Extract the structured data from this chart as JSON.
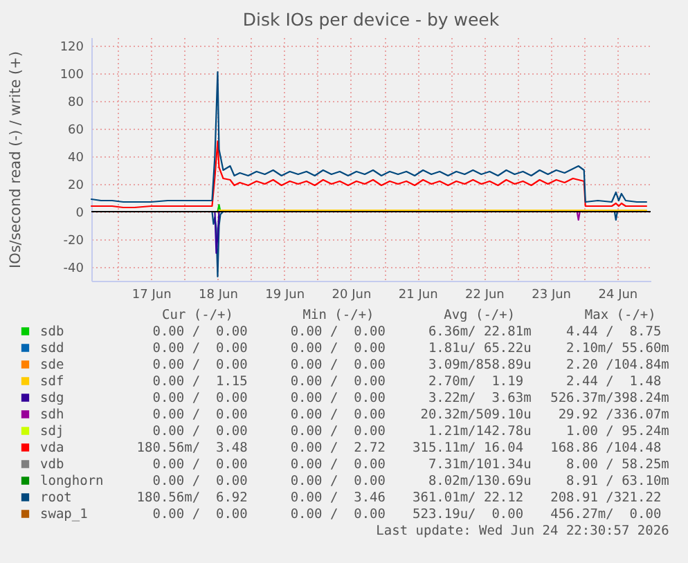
{
  "chart_data": {
    "type": "line",
    "title": "Disk IOs per device - by week",
    "ylabel": "IOs/second read (-) / write (+)",
    "xlim": [
      "2026-06-16T14:30",
      "2026-06-25T00:00"
    ],
    "ylim": [
      -50,
      126
    ],
    "xticks": [
      {
        "value": "2026-06-17T00:00",
        "label": null
      },
      {
        "value": "2026-06-17T12:00",
        "label": "17 Jun"
      },
      {
        "value": "2026-06-18T00:00",
        "label": null
      },
      {
        "value": "2026-06-18T12:00",
        "label": "18 Jun"
      },
      {
        "value": "2026-06-19T00:00",
        "label": null
      },
      {
        "value": "2026-06-19T12:00",
        "label": "19 Jun"
      },
      {
        "value": "2026-06-20T00:00",
        "label": null
      },
      {
        "value": "2026-06-20T12:00",
        "label": "20 Jun"
      },
      {
        "value": "2026-06-21T00:00",
        "label": null
      },
      {
        "value": "2026-06-21T12:00",
        "label": "21 Jun"
      },
      {
        "value": "2026-06-22T00:00",
        "label": null
      },
      {
        "value": "2026-06-22T12:00",
        "label": "22 Jun"
      },
      {
        "value": "2026-06-23T00:00",
        "label": null
      },
      {
        "value": "2026-06-23T12:00",
        "label": "23 Jun"
      },
      {
        "value": "2026-06-24T00:00",
        "label": null
      },
      {
        "value": "2026-06-24T12:00",
        "label": "24 Jun"
      }
    ],
    "yticks": [
      -40,
      -20,
      0,
      20,
      40,
      60,
      80,
      100,
      120
    ],
    "grid": true,
    "legend": "bottom",
    "ref_lines": [
      {
        "axis": "y",
        "value": 0,
        "color": "#000000"
      }
    ],
    "x": [
      "2026-06-16T14:30",
      "2026-06-16T18:00",
      "2026-06-16T22:00",
      "2026-06-17T02:00",
      "2026-06-17T06:00",
      "2026-06-17T12:00",
      "2026-06-17T18:00",
      "2026-06-18T00:00",
      "2026-06-18T06:00",
      "2026-06-18T10:00",
      "2026-06-18T11:00",
      "2026-06-18T12:00",
      "2026-06-18T12:30",
      "2026-06-18T14:00",
      "2026-06-18T16:30",
      "2026-06-18T18:00",
      "2026-06-18T20:00",
      "2026-06-18T23:00",
      "2026-06-19T02:00",
      "2026-06-19T05:00",
      "2026-06-19T08:00",
      "2026-06-19T11:00",
      "2026-06-19T14:00",
      "2026-06-19T17:00",
      "2026-06-19T20:00",
      "2026-06-19T23:00",
      "2026-06-20T02:00",
      "2026-06-20T05:00",
      "2026-06-20T08:00",
      "2026-06-20T11:00",
      "2026-06-20T14:00",
      "2026-06-20T17:00",
      "2026-06-20T20:00",
      "2026-06-20T23:00",
      "2026-06-21T02:00",
      "2026-06-21T05:00",
      "2026-06-21T08:00",
      "2026-06-21T11:00",
      "2026-06-21T14:00",
      "2026-06-21T17:00",
      "2026-06-21T20:00",
      "2026-06-21T23:00",
      "2026-06-22T02:00",
      "2026-06-22T05:00",
      "2026-06-22T08:00",
      "2026-06-22T11:00",
      "2026-06-22T14:00",
      "2026-06-22T17:00",
      "2026-06-22T20:00",
      "2026-06-22T23:00",
      "2026-06-23T02:00",
      "2026-06-23T05:00",
      "2026-06-23T08:00",
      "2026-06-23T11:00",
      "2026-06-23T14:00",
      "2026-06-23T17:00",
      "2026-06-23T20:00",
      "2026-06-23T22:00",
      "2026-06-24T00:00",
      "2026-06-24T00:30",
      "2026-06-24T05:00",
      "2026-06-24T10:00",
      "2026-06-24T11:30",
      "2026-06-24T12:30",
      "2026-06-24T13:30",
      "2026-06-24T15:00",
      "2026-06-24T19:00",
      "2026-06-24T22:30"
    ],
    "series": [
      {
        "name": "sdb",
        "color": "#00cc00",
        "x": [
          "2026-06-18T12:00",
          "2026-06-18T12:30",
          "2026-06-18T13:00"
        ],
        "values": [
          0,
          5,
          0
        ]
      },
      {
        "name": "sdd",
        "color": "#0066b3",
        "values": [
          null,
          null,
          null,
          null,
          null,
          null,
          null,
          null,
          null,
          null,
          null,
          null,
          null,
          null,
          null,
          null,
          null,
          null,
          null,
          null,
          null,
          null,
          null,
          null,
          null,
          null,
          null,
          null,
          null,
          null,
          null,
          null,
          null,
          null,
          null,
          null,
          null,
          null,
          null,
          null,
          null,
          null,
          null,
          null,
          null,
          null,
          null,
          null,
          null,
          null,
          null,
          null,
          null,
          null,
          null,
          null,
          null,
          null,
          null,
          null,
          null,
          null,
          null,
          null,
          null,
          null,
          null,
          null
        ]
      },
      {
        "name": "sde",
        "color": "#ff8000",
        "values": [
          null,
          null,
          null,
          null,
          null,
          null,
          null,
          null,
          null,
          null,
          null,
          null,
          null,
          null,
          null,
          null,
          null,
          null,
          null,
          null,
          null,
          null,
          null,
          null,
          null,
          null,
          null,
          null,
          null,
          null,
          null,
          null,
          null,
          null,
          null,
          null,
          null,
          null,
          null,
          null,
          null,
          null,
          null,
          null,
          null,
          null,
          null,
          null,
          null,
          null,
          null,
          null,
          null,
          null,
          null,
          null,
          null,
          null,
          null,
          null,
          null,
          null,
          null,
          null,
          null,
          null,
          null,
          null
        ]
      },
      {
        "name": "sdf",
        "color": "#ffcc00",
        "x": [
          "2026-06-18T12:30",
          "2026-06-21T12:00",
          "2026-06-24T22:30"
        ],
        "values": [
          1,
          1,
          1
        ]
      },
      {
        "name": "sdg",
        "color": "#330099",
        "values": [
          null,
          null,
          null,
          null,
          null,
          null,
          null,
          null,
          null,
          null,
          null,
          null,
          null,
          null,
          null,
          null,
          null,
          null,
          null,
          null,
          null,
          null,
          null,
          null,
          null,
          null,
          null,
          null,
          null,
          null,
          null,
          null,
          null,
          null,
          null,
          null,
          null,
          null,
          null,
          null,
          null,
          null,
          null,
          null,
          null,
          null,
          null,
          null,
          null,
          null,
          null,
          null,
          null,
          null,
          null,
          null,
          null,
          null,
          null,
          null,
          null,
          null,
          null,
          null,
          null,
          null,
          null,
          null
        ]
      },
      {
        "name": "sdh",
        "color": "#990099",
        "values": [
          null,
          null,
          null,
          null,
          null,
          null,
          null,
          null,
          null,
          null,
          null,
          null,
          null,
          null,
          null,
          null,
          null,
          null,
          null,
          null,
          null,
          null,
          null,
          null,
          null,
          null,
          null,
          null,
          null,
          null,
          null,
          null,
          null,
          null,
          null,
          null,
          null,
          null,
          null,
          null,
          null,
          null,
          null,
          null,
          null,
          null,
          null,
          null,
          null,
          null,
          null,
          null,
          null,
          null,
          null,
          null,
          null,
          null,
          null,
          null,
          null,
          null,
          null,
          null,
          null,
          null,
          null,
          null
        ]
      },
      {
        "name": "sdj",
        "color": "#ccff00",
        "values": [
          null,
          null,
          null,
          null,
          null,
          null,
          null,
          null,
          null,
          null,
          null,
          null,
          null,
          null,
          null,
          null,
          null,
          null,
          null,
          null,
          null,
          null,
          null,
          null,
          null,
          null,
          null,
          null,
          null,
          null,
          null,
          null,
          null,
          null,
          null,
          null,
          null,
          null,
          null,
          null,
          null,
          null,
          null,
          null,
          null,
          null,
          null,
          null,
          null,
          null,
          null,
          null,
          null,
          null,
          null,
          null,
          null,
          null,
          null,
          null,
          null,
          null,
          null,
          null,
          null,
          null,
          null,
          null
        ]
      },
      {
        "name": "vda",
        "color": "#ff0000",
        "values": [
          4,
          4,
          4,
          3,
          3,
          4,
          4,
          4,
          4,
          4,
          25,
          51,
          32,
          24,
          23,
          19,
          21,
          19,
          22,
          20,
          23,
          19,
          22,
          20,
          22,
          19,
          23,
          20,
          22,
          19,
          22,
          20,
          23,
          19,
          22,
          20,
          22,
          19,
          23,
          20,
          22,
          19,
          22,
          20,
          23,
          20,
          22,
          19,
          23,
          20,
          22,
          19,
          23,
          20,
          23,
          21,
          24,
          23,
          22,
          4,
          4,
          4,
          6,
          4,
          6,
          4,
          4,
          4
        ]
      },
      {
        "name": "vdb",
        "color": "#808080",
        "values": [
          null,
          null,
          null,
          null,
          null,
          null,
          null,
          null,
          null,
          null,
          null,
          null,
          null,
          null,
          null,
          null,
          null,
          null,
          null,
          null,
          null,
          null,
          null,
          null,
          null,
          null,
          null,
          null,
          null,
          null,
          null,
          null,
          null,
          null,
          null,
          null,
          null,
          null,
          null,
          null,
          null,
          null,
          null,
          null,
          null,
          null,
          null,
          null,
          null,
          null,
          null,
          null,
          null,
          null,
          null,
          null,
          null,
          null,
          null,
          null,
          null,
          null,
          null,
          null,
          null,
          null,
          null,
          null
        ]
      },
      {
        "name": "longhorn",
        "color": "#008f00",
        "values": [
          null,
          null,
          null,
          null,
          null,
          null,
          null,
          null,
          null,
          null,
          null,
          null,
          null,
          null,
          null,
          null,
          null,
          null,
          null,
          null,
          null,
          null,
          null,
          null,
          null,
          null,
          null,
          null,
          null,
          null,
          null,
          null,
          null,
          null,
          null,
          null,
          null,
          null,
          null,
          null,
          null,
          null,
          null,
          null,
          null,
          null,
          null,
          null,
          null,
          null,
          null,
          null,
          null,
          null,
          null,
          null,
          null,
          null,
          null,
          null,
          null,
          null,
          null,
          null,
          null,
          null,
          null,
          null
        ]
      },
      {
        "name": "root",
        "color": "#00487d",
        "values": [
          9,
          8,
          8,
          7,
          7,
          7,
          8,
          8,
          8,
          8,
          40,
          101,
          45,
          30,
          33,
          26,
          28,
          26,
          29,
          27,
          30,
          26,
          29,
          27,
          29,
          26,
          30,
          27,
          29,
          26,
          29,
          27,
          30,
          26,
          29,
          27,
          29,
          26,
          30,
          27,
          29,
          26,
          29,
          27,
          30,
          27,
          29,
          26,
          30,
          27,
          29,
          26,
          30,
          27,
          30,
          28,
          31,
          33,
          30,
          7,
          8,
          7,
          14,
          8,
          13,
          8,
          7,
          7
        ]
      },
      {
        "name": "swap_1",
        "color": "#b35a00",
        "values": [
          null,
          null,
          null,
          null,
          null,
          null,
          null,
          null,
          null,
          null,
          null,
          null,
          null,
          null,
          null,
          null,
          null,
          null,
          null,
          null,
          null,
          null,
          null,
          null,
          null,
          null,
          null,
          null,
          null,
          null,
          null,
          null,
          null,
          null,
          null,
          null,
          null,
          null,
          null,
          null,
          null,
          null,
          null,
          null,
          null,
          null,
          null,
          null,
          null,
          null,
          null,
          null,
          null,
          null,
          null,
          null,
          null,
          null,
          null,
          null,
          null,
          null,
          null,
          null,
          null,
          null,
          null,
          null
        ]
      },
      {
        "color": "#00487d",
        "x": [
          "2026-06-18T10:00",
          "2026-06-18T10:30",
          "2026-06-18T11:00",
          "2026-06-18T11:30",
          "2026-06-18T12:00",
          "2026-06-18T12:30",
          "2026-06-18T13:00",
          "2026-06-18T14:00",
          "2026-06-21T00:00",
          "2026-06-24T11:00",
          "2026-06-24T11:30",
          "2026-06-24T12:00"
        ],
        "values": [
          0,
          -9,
          -4,
          -12,
          -47,
          -10,
          -2,
          0,
          null,
          0,
          -6,
          0
        ]
      },
      {
        "color": "#330099",
        "x": [
          "2026-06-18T11:00",
          "2026-06-18T11:30",
          "2026-06-18T12:00",
          "2026-06-18T12:30"
        ],
        "values": [
          0,
          -30,
          -18,
          0
        ]
      },
      {
        "color": "#990099",
        "x": [
          "2026-06-23T21:30",
          "2026-06-23T22:00",
          "2026-06-23T22:30"
        ],
        "values": [
          0,
          -6,
          0
        ]
      }
    ],
    "annotations": [
      "Cur (-/+)",
      "Min (-/+)",
      "Avg (-/+)",
      "Max (-/+)",
      "0.00 /  0.00",
      "0.00 /  0.00",
      "6.36m/ 22.81m",
      "4.44 /  8.75",
      "0.00 /  0.00",
      "0.00 /  0.00",
      "1.81u/ 65.22u",
      "2.10m/ 55.60m",
      "0.00 /  0.00",
      "0.00 /  0.00",
      "3.09m/858.89u",
      "2.20 /104.84m",
      "0.00 /  1.15",
      "0.00 /  0.00",
      "2.70m/  1.19",
      "2.44 /  1.48",
      "0.00 /  0.00",
      "0.00 /  0.00",
      "3.22m/  3.63m",
      "526.37m/398.24m",
      "0.00 /  0.00",
      "0.00 /  0.00",
      "20.32m/509.10u",
      "29.92 /336.07m",
      "0.00 /  0.00",
      "0.00 /  0.00",
      "1.21m/142.78u",
      "1.00 / 95.24m",
      "180.56m/  3.48",
      "0.00 /  2.72",
      "315.11m/ 16.04",
      "168.86 /104.48",
      "0.00 /  0.00",
      "0.00 /  0.00",
      "7.31m/101.34u",
      "8.00 / 58.25m",
      "0.00 /  0.00",
      "0.00 /  0.00",
      "8.02m/130.69u",
      "8.91 / 63.10m",
      "180.56m/  6.92",
      "0.00 /  3.46",
      "361.01m/ 22.12",
      "208.91 /321.22",
      "0.00 /  0.00",
      "0.00 /  0.00",
      "523.19u/  0.00",
      "456.27m/  0.00",
      "Last update: Wed Jun 24 22:30:57 2026"
    ]
  }
}
